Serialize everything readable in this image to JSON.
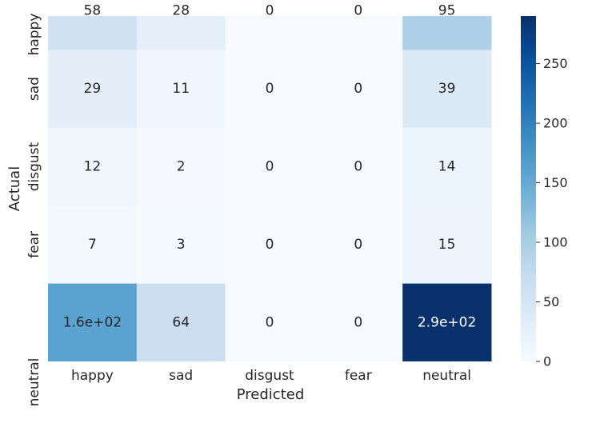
{
  "chart_data": {
    "type": "heatmap",
    "title": "",
    "xlabel": "Predicted",
    "ylabel": "Actual",
    "rows": [
      "happy",
      "sad",
      "disgust",
      "fear",
      "neutral"
    ],
    "cols": [
      "happy",
      "sad",
      "disgust",
      "fear",
      "neutral"
    ],
    "values": [
      [
        58,
        28,
        0,
        0,
        95
      ],
      [
        29,
        11,
        0,
        0,
        39
      ],
      [
        12,
        2,
        0,
        0,
        14
      ],
      [
        7,
        3,
        0,
        0,
        15
      ],
      [
        160,
        64,
        0,
        0,
        290
      ]
    ],
    "cell_labels": [
      [
        "58",
        "28",
        "0",
        "0",
        "95"
      ],
      [
        "29",
        "11",
        "0",
        "0",
        "39"
      ],
      [
        "12",
        "2",
        "0",
        "0",
        "14"
      ],
      [
        "7",
        "3",
        "0",
        "0",
        "15"
      ],
      [
        "1.6e+02",
        "64",
        "0",
        "0",
        "2.9e+02"
      ]
    ],
    "colorbar": {
      "range": [
        0,
        290
      ],
      "ticks": [
        0,
        50,
        100,
        150,
        200,
        250
      ],
      "tick_labels": [
        "0",
        "50",
        "100",
        "150",
        "200",
        "250"
      ]
    },
    "colormap": "Blues",
    "colors": {
      "low": "#f7fbff",
      "high": "#08306b",
      "text_dark": "#262626",
      "text_light": "#ffffff"
    },
    "grid": false,
    "legend": "colorbar-right"
  }
}
